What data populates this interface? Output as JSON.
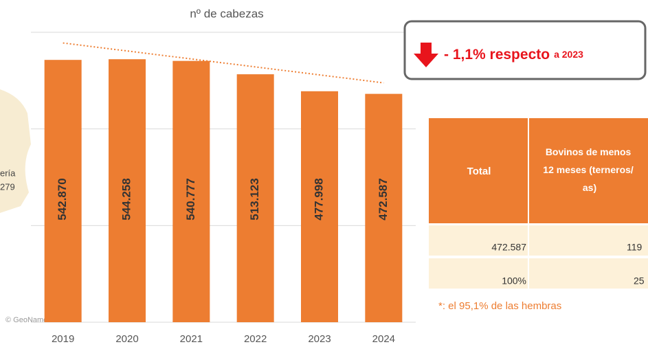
{
  "chart_data": {
    "type": "bar",
    "title": "nº de cabezas",
    "categories": [
      "2019",
      "2020",
      "2021",
      "2022",
      "2023",
      "2024"
    ],
    "values": [
      542870,
      544258,
      540777,
      513123,
      477998,
      472587
    ],
    "value_labels": [
      "542.870",
      "544.258",
      "540.777",
      "513.123",
      "477.998",
      "472.587"
    ],
    "color": "#ed7d31",
    "ylim": [
      0,
      600000
    ],
    "yticks": [
      0,
      200000,
      400000,
      600000
    ],
    "grid": true,
    "trendline": true,
    "annotation": [
      "- 1,1% respecto",
      "a 2023"
    ]
  },
  "table": {
    "header": [
      "Total",
      [
        "Bovinos  de menos",
        "12 meses (terneros/",
        "as)"
      ]
    ],
    "rows": [
      [
        "472.587",
        "119"
      ],
      [
        "100%",
        "25"
      ]
    ]
  },
  "footnote": "*: el 95,1% de las hembras",
  "map_labels": [
    "ería",
    "279",
    "© GeoNames"
  ]
}
